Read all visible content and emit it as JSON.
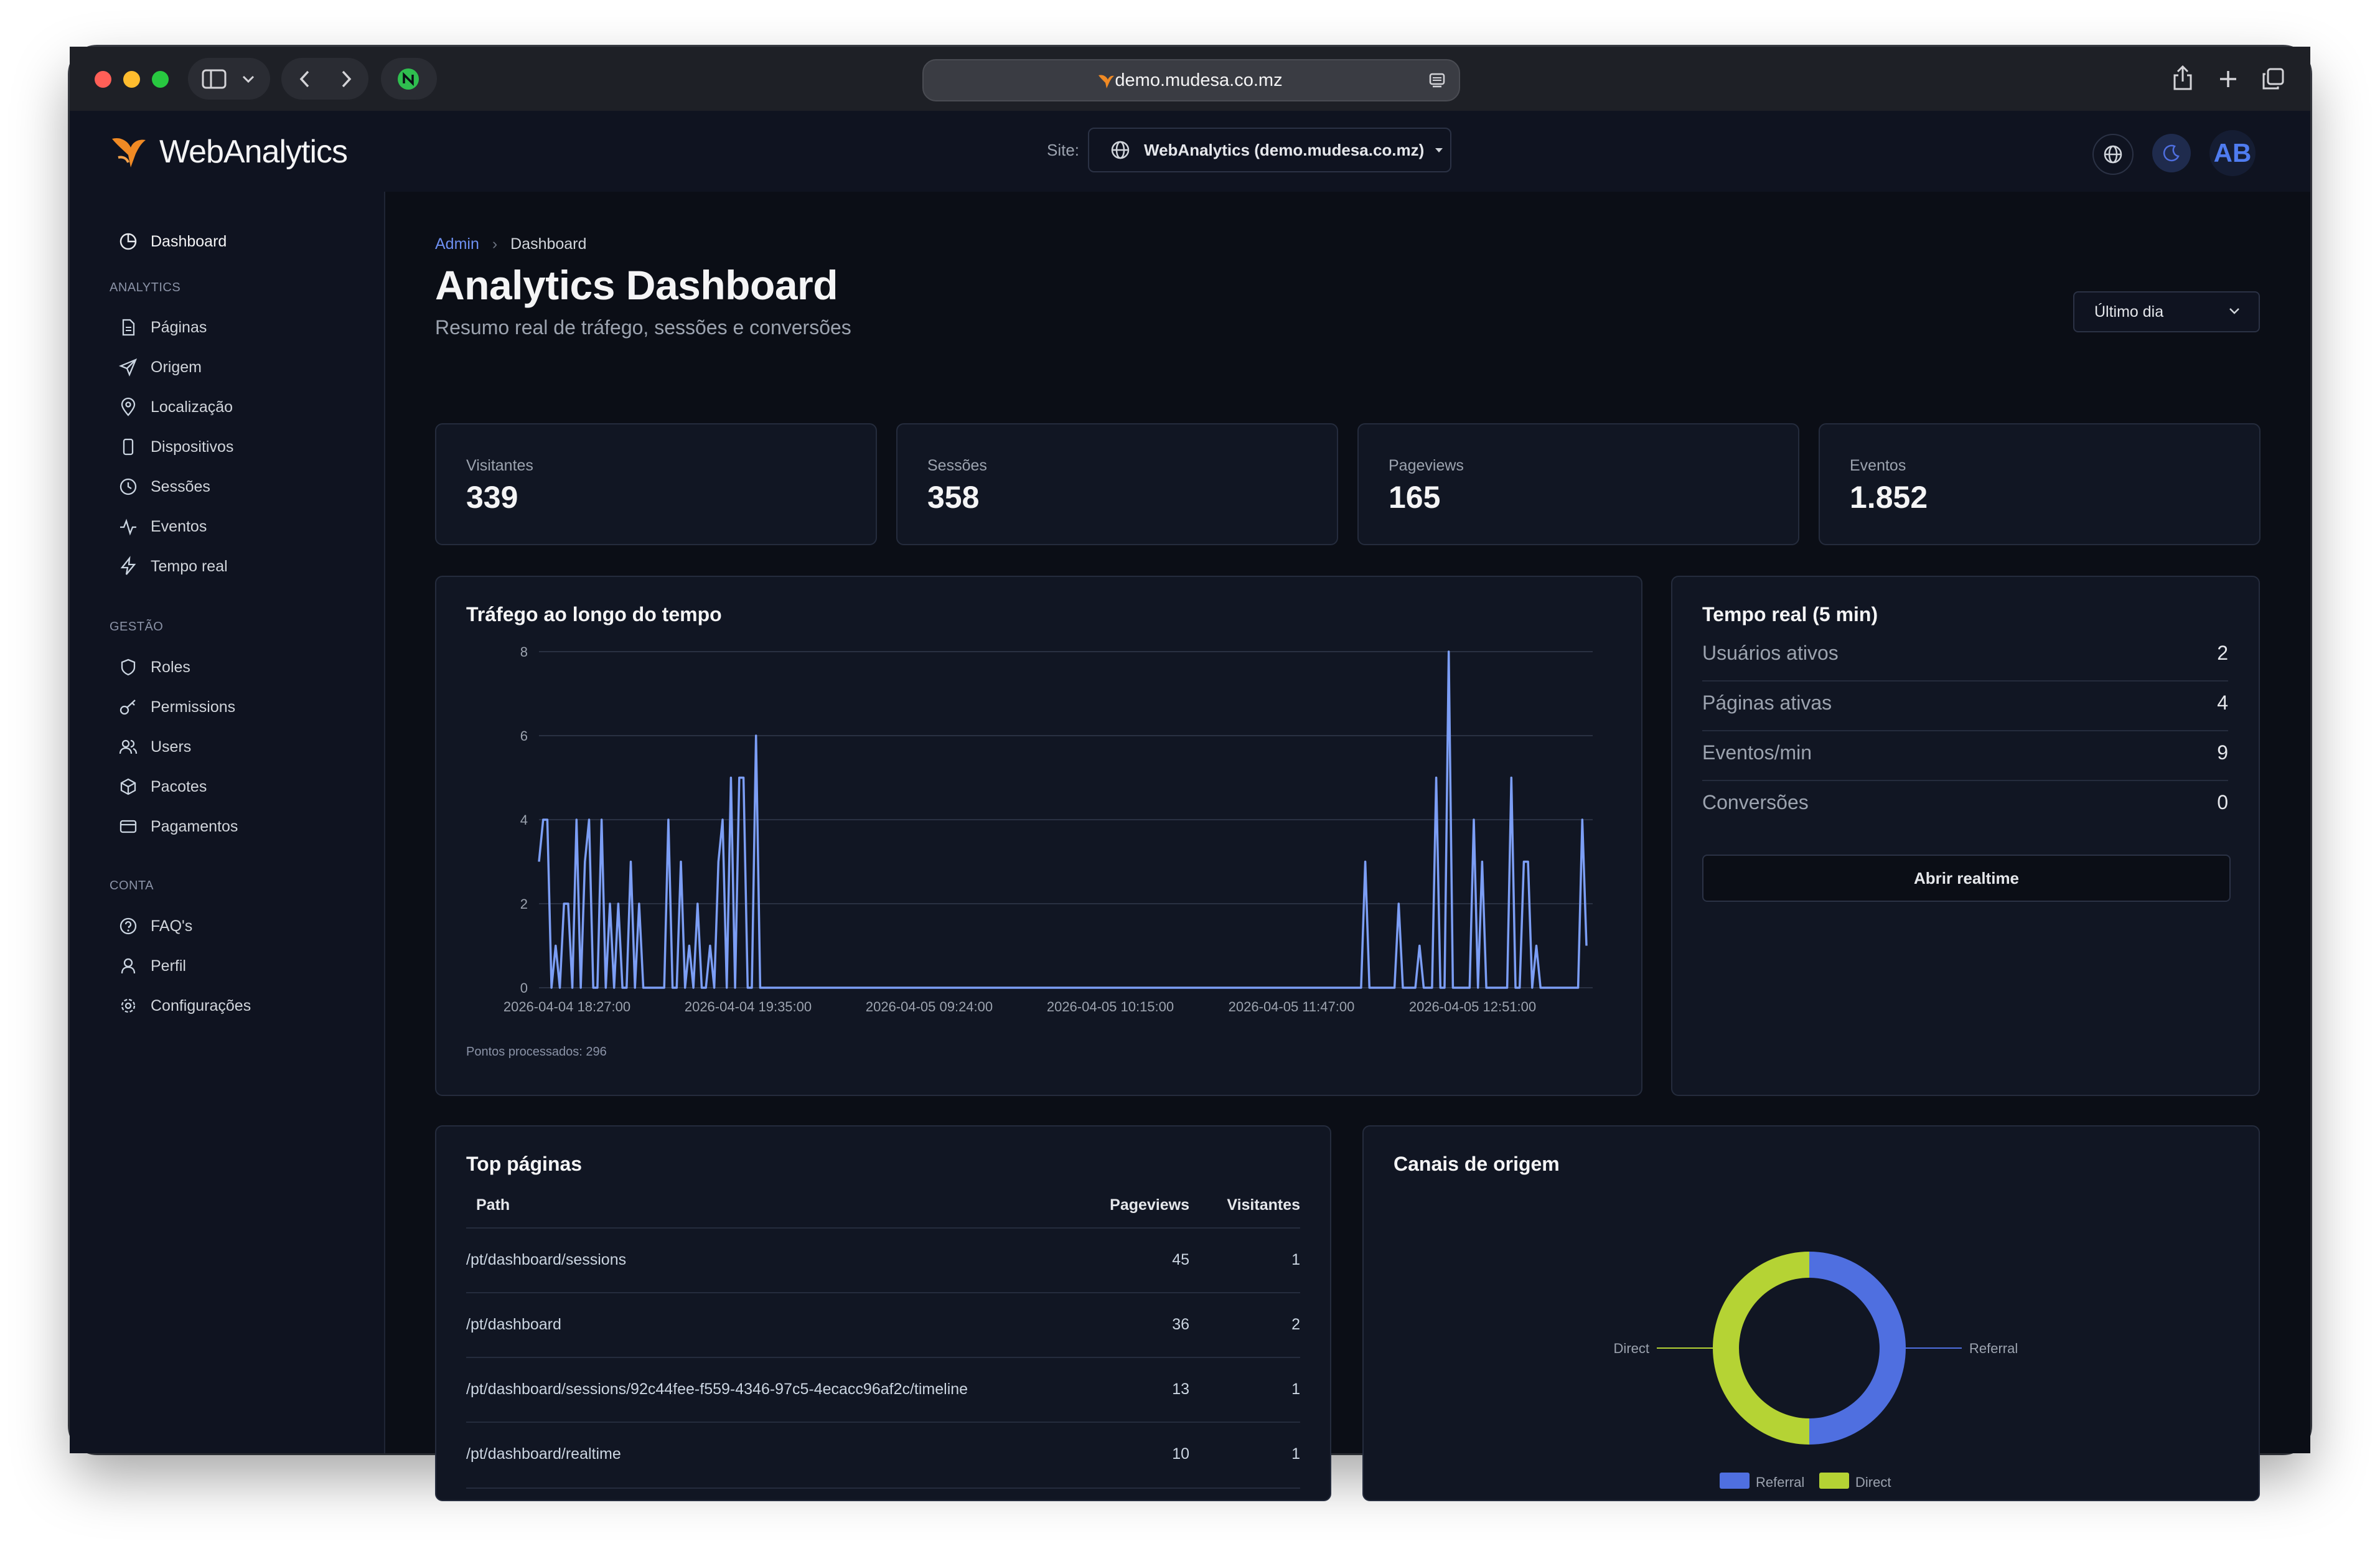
{
  "browser": {
    "url": "demo.mudesa.co.mz"
  },
  "header": {
    "brand": "WebAnalytics",
    "site_label": "Site:",
    "site_value": "WebAnalytics (demo.mudesa.co.mz)",
    "avatar_initials": "AB"
  },
  "sidebar": {
    "dashboard": "Dashboard",
    "sections": {
      "analytics": "ANALYTICS",
      "gestao": "GESTÃO",
      "conta": "CONTA"
    },
    "analytics_items": [
      {
        "label": "Páginas",
        "icon": "file-icon"
      },
      {
        "label": "Origem",
        "icon": "send-icon"
      },
      {
        "label": "Localização",
        "icon": "map-pin-icon"
      },
      {
        "label": "Dispositivos",
        "icon": "smartphone-icon"
      },
      {
        "label": "Sessões",
        "icon": "clock-icon"
      },
      {
        "label": "Eventos",
        "icon": "activity-icon"
      },
      {
        "label": "Tempo real",
        "icon": "zap-icon"
      }
    ],
    "gestao_items": [
      {
        "label": "Roles",
        "icon": "shield-icon"
      },
      {
        "label": "Permissions",
        "icon": "key-icon"
      },
      {
        "label": "Users",
        "icon": "users-icon"
      },
      {
        "label": "Pacotes",
        "icon": "package-icon"
      },
      {
        "label": "Pagamentos",
        "icon": "credit-card-icon"
      }
    ],
    "conta_items": [
      {
        "label": "FAQ's",
        "icon": "help-circle-icon"
      },
      {
        "label": "Perfil",
        "icon": "user-icon"
      },
      {
        "label": "Configurações",
        "icon": "gear-icon"
      }
    ]
  },
  "main": {
    "breadcrumb": {
      "root": "Admin",
      "current": "Dashboard"
    },
    "title": "Analytics Dashboard",
    "subtitle": "Resumo real de tráfego, sessões e conversões",
    "range_select": "Último dia",
    "kpis": [
      {
        "label": "Visitantes",
        "value": "339"
      },
      {
        "label": "Sessões",
        "value": "358"
      },
      {
        "label": "Pageviews",
        "value": "165"
      },
      {
        "label": "Eventos",
        "value": "1.852"
      }
    ],
    "traffic": {
      "title": "Tráfego ao longo do tempo",
      "footnote": "Pontos processados: 296"
    },
    "realtime": {
      "title": "Tempo real (5 min)",
      "rows": [
        {
          "label": "Usuários ativos",
          "value": "2"
        },
        {
          "label": "Páginas ativas",
          "value": "4"
        },
        {
          "label": "Eventos/min",
          "value": "9"
        },
        {
          "label": "Conversões",
          "value": "0"
        }
      ],
      "button": "Abrir realtime"
    },
    "top_pages": {
      "title": "Top páginas",
      "columns": [
        "Path",
        "Pageviews",
        "Visitantes"
      ],
      "rows": [
        {
          "path": "/pt/dashboard/sessions",
          "pageviews": "45",
          "visitors": "1"
        },
        {
          "path": "/pt/dashboard",
          "pageviews": "36",
          "visitors": "2"
        },
        {
          "path": "/pt/dashboard/sessions/92c44fee-f559-4346-97c5-4ecacc96af2c/timeline",
          "pageviews": "13",
          "visitors": "1"
        },
        {
          "path": "/pt/dashboard/realtime",
          "pageviews": "10",
          "visitors": "1"
        }
      ]
    },
    "channels": {
      "title": "Canais de origem"
    }
  },
  "colors": {
    "accent_line": "#7c9ef5",
    "referral": "#4f6fe0",
    "direct": "#b5d334",
    "brand_orange": "#f08a24"
  },
  "chart_data": [
    {
      "type": "line",
      "ylim": [
        0,
        8
      ],
      "yticks": [
        0,
        2,
        4,
        6,
        8
      ],
      "xtick_labels": [
        "2026-04-04 18:27:00",
        "2026-04-04 19:35:00",
        "2026-04-05 09:24:00",
        "2026-04-05 10:15:00",
        "2026-04-05 11:47:00",
        "2026-04-05 12:51:00"
      ],
      "grid": true,
      "series": [
        {
          "values": [
            3,
            4,
            4,
            0,
            1,
            0,
            2,
            2,
            0,
            4,
            0,
            3,
            4,
            0,
            0,
            4,
            0,
            2,
            0,
            2,
            0,
            0,
            3,
            0,
            2,
            0,
            0,
            0,
            0,
            0,
            0,
            4,
            0,
            0,
            3,
            0,
            1,
            0,
            2,
            0,
            0,
            1,
            0,
            3,
            4,
            0,
            5,
            0,
            5,
            5,
            0,
            0,
            6,
            0,
            0,
            0,
            0,
            0,
            0,
            0,
            0,
            0,
            0,
            0,
            0,
            0,
            0,
            0,
            0,
            0,
            0,
            0,
            0,
            0,
            0,
            0,
            0,
            0,
            0,
            0,
            0,
            0,
            0,
            0,
            0,
            0,
            0,
            0,
            0,
            0,
            0,
            0,
            0,
            0,
            0,
            0,
            0,
            0,
            0,
            0,
            0,
            0,
            0,
            0,
            0,
            0,
            0,
            0,
            0,
            0,
            0,
            0,
            0,
            0,
            0,
            0,
            0,
            0,
            0,
            0,
            0,
            0,
            0,
            0,
            0,
            0,
            0,
            0,
            0,
            0,
            0,
            0,
            0,
            0,
            0,
            0,
            0,
            0,
            0,
            0,
            0,
            0,
            0,
            0,
            0,
            0,
            0,
            0,
            0,
            0,
            0,
            0,
            0,
            0,
            0,
            0,
            0,
            0,
            0,
            0,
            0,
            0,
            0,
            0,
            0,
            0,
            0,
            0,
            0,
            0,
            0,
            0,
            0,
            0,
            0,
            0,
            0,
            0,
            0,
            0,
            0,
            0,
            0,
            0,
            0,
            0,
            0,
            0,
            0,
            0,
            0,
            0,
            0,
            0,
            0,
            0,
            0,
            0,
            3,
            0,
            0,
            0,
            0,
            0,
            0,
            0,
            2,
            0,
            0,
            0,
            0,
            1,
            0,
            0,
            0,
            5,
            0,
            0,
            8,
            0,
            0,
            0,
            0,
            0,
            4,
            0,
            3,
            0,
            0,
            0,
            0,
            0,
            0,
            5,
            0,
            0,
            3,
            3,
            0,
            1,
            0,
            0,
            0,
            0,
            0,
            0,
            0,
            0,
            0,
            0,
            4,
            1
          ]
        }
      ]
    },
    {
      "type": "pie",
      "donut": true,
      "labels": [
        "Referral",
        "Direct"
      ],
      "values": [
        50,
        50
      ],
      "legend": "bottom"
    }
  ]
}
